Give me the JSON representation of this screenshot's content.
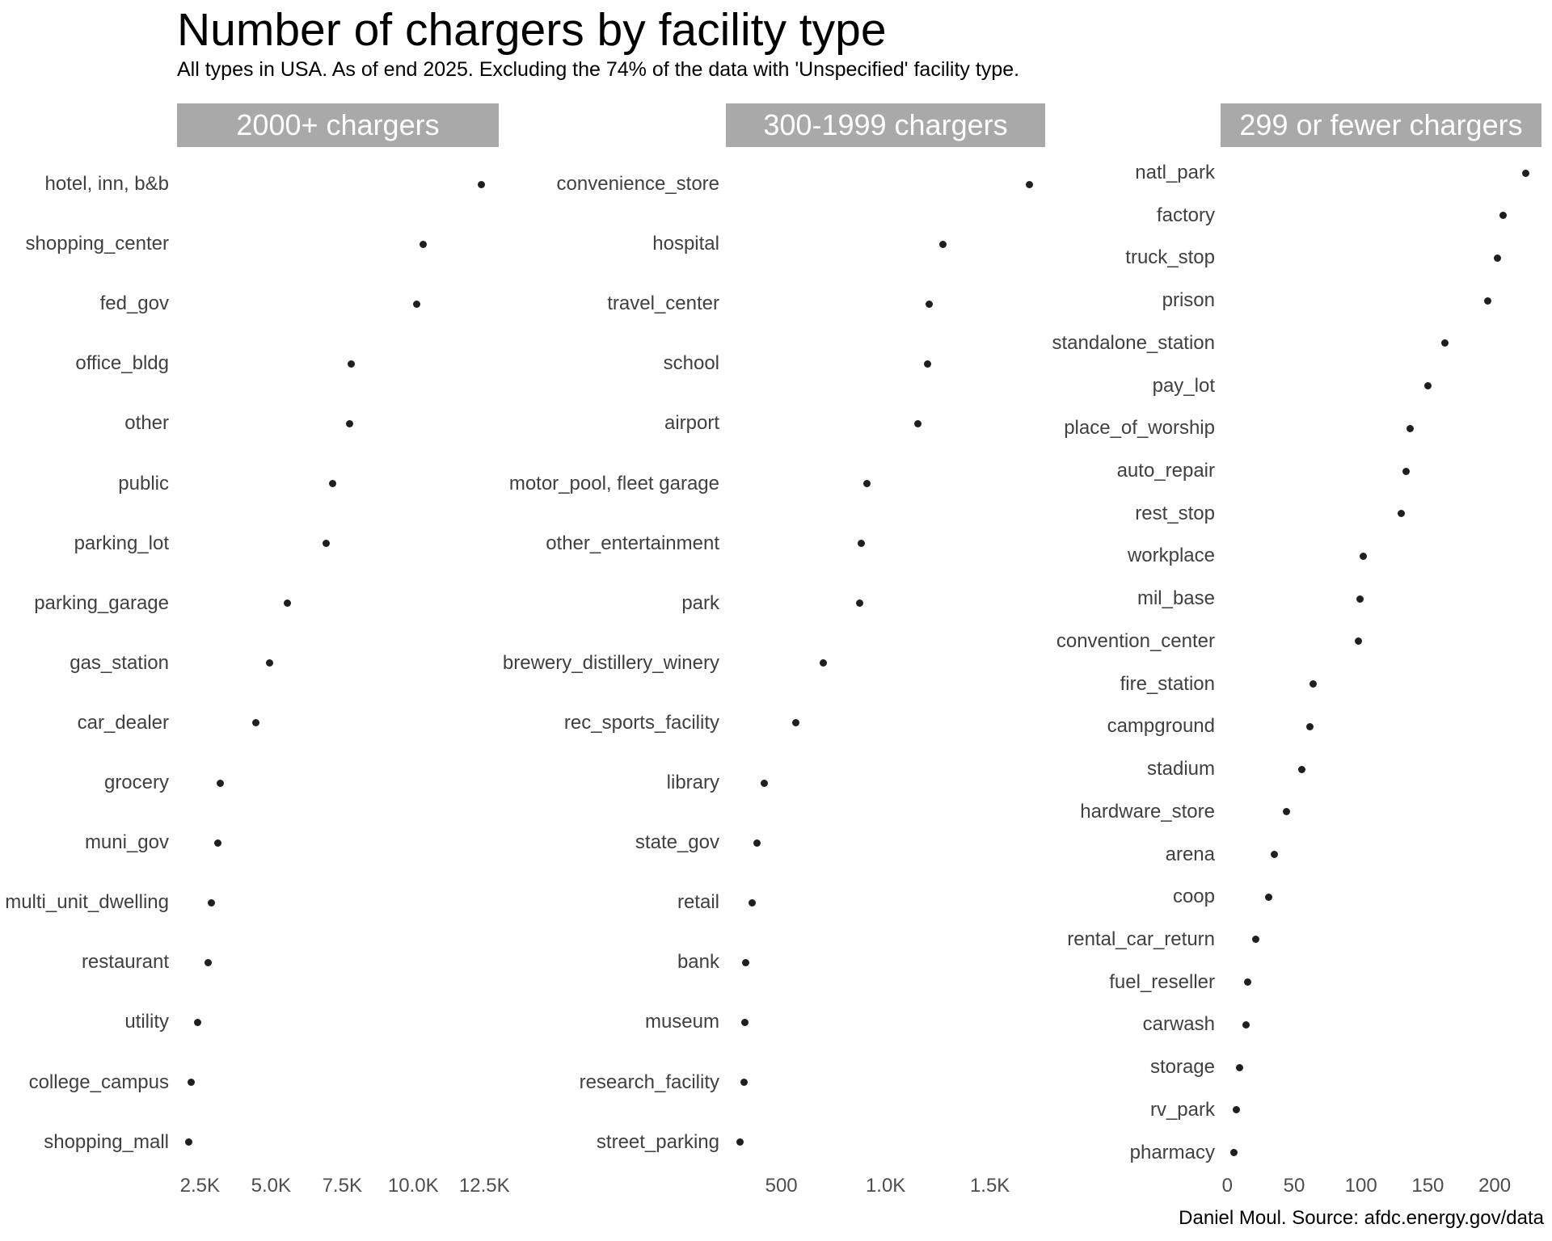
{
  "title": "Number of chargers by facility type",
  "subtitle": "All types in USA. As of end 2025. Excluding the 74% of the data with 'Unspecified' facility type.",
  "caption": "Daniel Moul. Source: afdc.energy.gov/data",
  "colors": {
    "strip_bg": "#a9a9a9",
    "strip_text": "#ffffff",
    "dot": "#1f1f1f",
    "label": "#404040",
    "tick": "#4d4d4d",
    "background": "#ffffff"
  },
  "chart_data": {
    "type": "scatter",
    "variant": "cleveland-dot-plot",
    "orientation": "horizontal",
    "grid": "off",
    "legend": "none",
    "title": "Number of chargers by facility type",
    "subtitle": "All types in USA. As of end 2025. Excluding the 74% of the data with 'Unspecified' facility type.",
    "xlabel": "",
    "ylabel": "",
    "panels": [
      {
        "header": "2000+ chargers",
        "xlim": [
          1696,
          13004
        ],
        "ticks": [
          {
            "label": "2.5K",
            "value": 2500
          },
          {
            "label": "5.0K",
            "value": 5000
          },
          {
            "label": "7.5K",
            "value": 7500
          },
          {
            "label": "10.0K",
            "value": 10000
          },
          {
            "label": "12.5K",
            "value": 12500
          }
        ],
        "rows": [
          {
            "label": "hotel, inn, b&b",
            "value": 12400
          },
          {
            "label": "shopping_center",
            "value": 10340
          },
          {
            "label": "fed_gov",
            "value": 10110
          },
          {
            "label": "office_bldg",
            "value": 7830
          },
          {
            "label": "other",
            "value": 7770
          },
          {
            "label": "public",
            "value": 7160
          },
          {
            "label": "parking_lot",
            "value": 6940
          },
          {
            "label": "parking_garage",
            "value": 5580
          },
          {
            "label": "gas_station",
            "value": 4960
          },
          {
            "label": "car_dealer",
            "value": 4470
          },
          {
            "label": "grocery",
            "value": 3210
          },
          {
            "label": "muni_gov",
            "value": 3120
          },
          {
            "label": "multi_unit_dwelling",
            "value": 2900
          },
          {
            "label": "restaurant",
            "value": 2790
          },
          {
            "label": "utility",
            "value": 2420
          },
          {
            "label": "college_campus",
            "value": 2180
          },
          {
            "label": "shopping_mall",
            "value": 2120
          }
        ]
      },
      {
        "header": "300-1999 chargers",
        "xlim": [
          234,
          1765
        ],
        "ticks": [
          {
            "label": "500",
            "value": 500
          },
          {
            "label": "1.0K",
            "value": 1000
          },
          {
            "label": "1.5K",
            "value": 1500
          }
        ],
        "rows": [
          {
            "label": "convenience_store",
            "value": 1690
          },
          {
            "label": "hospital",
            "value": 1275
          },
          {
            "label": "travel_center",
            "value": 1210
          },
          {
            "label": "school",
            "value": 1200
          },
          {
            "label": "airport",
            "value": 1155
          },
          {
            "label": "motor_pool, fleet garage",
            "value": 910
          },
          {
            "label": "other_entertainment",
            "value": 885
          },
          {
            "label": "park",
            "value": 875
          },
          {
            "label": "brewery_distillery_winery",
            "value": 700
          },
          {
            "label": "rec_sports_facility",
            "value": 570
          },
          {
            "label": "library",
            "value": 417
          },
          {
            "label": "state_gov",
            "value": 385
          },
          {
            "label": "retail",
            "value": 360
          },
          {
            "label": "bank",
            "value": 330
          },
          {
            "label": "museum",
            "value": 325
          },
          {
            "label": "research_facility",
            "value": 320
          },
          {
            "label": "street_parking",
            "value": 300
          }
        ]
      },
      {
        "header": "299 or fewer chargers",
        "xlim": [
          -5,
          235
        ],
        "ticks": [
          {
            "label": "0",
            "value": 0
          },
          {
            "label": "50",
            "value": 50
          },
          {
            "label": "100",
            "value": 100
          },
          {
            "label": "150",
            "value": 150
          },
          {
            "label": "200",
            "value": 200
          }
        ],
        "rows": [
          {
            "label": "natl_park",
            "value": 223
          },
          {
            "label": "factory",
            "value": 206
          },
          {
            "label": "truck_stop",
            "value": 202
          },
          {
            "label": "prison",
            "value": 195
          },
          {
            "label": "standalone_station",
            "value": 163
          },
          {
            "label": "pay_lot",
            "value": 150
          },
          {
            "label": "place_of_worship",
            "value": 137
          },
          {
            "label": "auto_repair",
            "value": 134
          },
          {
            "label": "rest_stop",
            "value": 130
          },
          {
            "label": "workplace",
            "value": 102
          },
          {
            "label": "mil_base",
            "value": 99
          },
          {
            "label": "convention_center",
            "value": 98
          },
          {
            "label": "fire_station",
            "value": 64
          },
          {
            "label": "campground",
            "value": 62
          },
          {
            "label": "stadium",
            "value": 56
          },
          {
            "label": "hardware_store",
            "value": 44
          },
          {
            "label": "arena",
            "value": 35
          },
          {
            "label": "coop",
            "value": 31
          },
          {
            "label": "rental_car_return",
            "value": 21
          },
          {
            "label": "fuel_reseller",
            "value": 15
          },
          {
            "label": "carwash",
            "value": 14
          },
          {
            "label": "storage",
            "value": 9
          },
          {
            "label": "rv_park",
            "value": 7
          },
          {
            "label": "pharmacy",
            "value": 5
          }
        ]
      }
    ]
  }
}
